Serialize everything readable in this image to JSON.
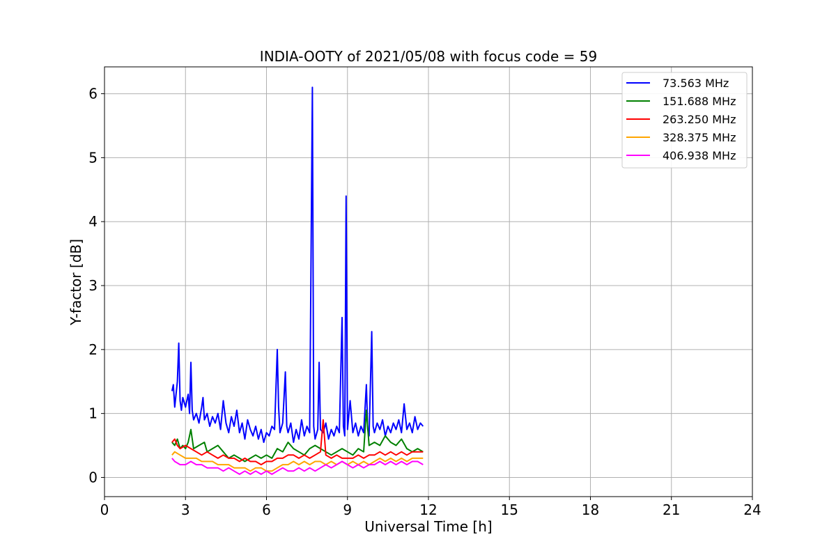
{
  "chart_data": {
    "type": "line",
    "title": "INDIA-OOTY of 2021/05/08 with focus code = 59",
    "xlabel": "Universal Time [h]",
    "ylabel": "Y-factor [dB]",
    "xlim": [
      0,
      24
    ],
    "ylim": [
      -0.3,
      6.42
    ],
    "xticks": [
      0,
      3,
      6,
      9,
      12,
      15,
      18,
      21,
      24
    ],
    "yticks": [
      0,
      1,
      2,
      3,
      4,
      5,
      6
    ],
    "grid": true,
    "legend_position": "top-right",
    "series": [
      {
        "name": " 73.563 MHz",
        "color": "#0000ff",
        "points": [
          [
            2.5,
            1.35
          ],
          [
            2.55,
            1.45
          ],
          [
            2.6,
            1.1
          ],
          [
            2.65,
            1.3
          ],
          [
            2.7,
            1.5
          ],
          [
            2.75,
            2.1
          ],
          [
            2.8,
            1.2
          ],
          [
            2.85,
            1.05
          ],
          [
            2.9,
            1.25
          ],
          [
            3.0,
            1.1
          ],
          [
            3.1,
            1.3
          ],
          [
            3.15,
            1.0
          ],
          [
            3.2,
            1.8
          ],
          [
            3.25,
            1.05
          ],
          [
            3.3,
            0.9
          ],
          [
            3.4,
            1.0
          ],
          [
            3.5,
            0.85
          ],
          [
            3.6,
            1.1
          ],
          [
            3.65,
            1.25
          ],
          [
            3.7,
            0.9
          ],
          [
            3.8,
            1.0
          ],
          [
            3.9,
            0.8
          ],
          [
            4.0,
            0.95
          ],
          [
            4.1,
            0.85
          ],
          [
            4.2,
            1.0
          ],
          [
            4.3,
            0.75
          ],
          [
            4.4,
            1.2
          ],
          [
            4.5,
            0.85
          ],
          [
            4.6,
            0.7
          ],
          [
            4.7,
            0.95
          ],
          [
            4.8,
            0.8
          ],
          [
            4.9,
            1.05
          ],
          [
            5.0,
            0.7
          ],
          [
            5.1,
            0.85
          ],
          [
            5.2,
            0.6
          ],
          [
            5.3,
            0.9
          ],
          [
            5.4,
            0.75
          ],
          [
            5.5,
            0.65
          ],
          [
            5.6,
            0.8
          ],
          [
            5.7,
            0.6
          ],
          [
            5.8,
            0.75
          ],
          [
            5.9,
            0.55
          ],
          [
            6.0,
            0.7
          ],
          [
            6.1,
            0.65
          ],
          [
            6.2,
            0.8
          ],
          [
            6.3,
            0.75
          ],
          [
            6.4,
            2.0
          ],
          [
            6.45,
            1.1
          ],
          [
            6.5,
            0.7
          ],
          [
            6.6,
            0.85
          ],
          [
            6.7,
            1.65
          ],
          [
            6.75,
            0.8
          ],
          [
            6.8,
            0.7
          ],
          [
            6.9,
            0.85
          ],
          [
            7.0,
            0.55
          ],
          [
            7.1,
            0.75
          ],
          [
            7.2,
            0.6
          ],
          [
            7.3,
            0.9
          ],
          [
            7.4,
            0.65
          ],
          [
            7.5,
            0.8
          ],
          [
            7.6,
            0.7
          ],
          [
            7.7,
            6.1
          ],
          [
            7.75,
            0.8
          ],
          [
            7.8,
            0.6
          ],
          [
            7.9,
            0.75
          ],
          [
            7.95,
            1.8
          ],
          [
            8.0,
            0.75
          ],
          [
            8.1,
            0.7
          ],
          [
            8.2,
            0.85
          ],
          [
            8.3,
            0.6
          ],
          [
            8.4,
            0.75
          ],
          [
            8.5,
            0.65
          ],
          [
            8.6,
            0.8
          ],
          [
            8.7,
            0.7
          ],
          [
            8.8,
            2.5
          ],
          [
            8.85,
            0.8
          ],
          [
            8.9,
            0.65
          ],
          [
            8.95,
            4.4
          ],
          [
            9.0,
            0.75
          ],
          [
            9.1,
            1.2
          ],
          [
            9.2,
            0.7
          ],
          [
            9.3,
            0.85
          ],
          [
            9.4,
            0.65
          ],
          [
            9.5,
            0.8
          ],
          [
            9.6,
            0.7
          ],
          [
            9.7,
            1.45
          ],
          [
            9.75,
            0.75
          ],
          [
            9.8,
            0.65
          ],
          [
            9.9,
            2.28
          ],
          [
            9.95,
            0.8
          ],
          [
            10.0,
            0.7
          ],
          [
            10.1,
            0.85
          ],
          [
            10.2,
            0.75
          ],
          [
            10.3,
            0.9
          ],
          [
            10.4,
            0.65
          ],
          [
            10.5,
            0.8
          ],
          [
            10.6,
            0.7
          ],
          [
            10.7,
            0.85
          ],
          [
            10.8,
            0.75
          ],
          [
            10.9,
            0.9
          ],
          [
            11.0,
            0.7
          ],
          [
            11.1,
            1.15
          ],
          [
            11.2,
            0.75
          ],
          [
            11.3,
            0.85
          ],
          [
            11.4,
            0.7
          ],
          [
            11.5,
            0.95
          ],
          [
            11.6,
            0.75
          ],
          [
            11.7,
            0.85
          ],
          [
            11.8,
            0.8
          ]
        ]
      },
      {
        "name": "151.688 MHz",
        "color": "#008000",
        "points": [
          [
            2.5,
            0.55
          ],
          [
            2.6,
            0.5
          ],
          [
            2.7,
            0.6
          ],
          [
            2.8,
            0.45
          ],
          [
            2.9,
            0.5
          ],
          [
            3.0,
            0.45
          ],
          [
            3.1,
            0.55
          ],
          [
            3.2,
            0.75
          ],
          [
            3.3,
            0.45
          ],
          [
            3.5,
            0.5
          ],
          [
            3.7,
            0.55
          ],
          [
            3.8,
            0.4
          ],
          [
            4.0,
            0.45
          ],
          [
            4.2,
            0.5
          ],
          [
            4.4,
            0.4
          ],
          [
            4.6,
            0.3
          ],
          [
            4.8,
            0.35
          ],
          [
            5.0,
            0.3
          ],
          [
            5.2,
            0.25
          ],
          [
            5.4,
            0.3
          ],
          [
            5.6,
            0.35
          ],
          [
            5.8,
            0.3
          ],
          [
            6.0,
            0.35
          ],
          [
            6.2,
            0.3
          ],
          [
            6.4,
            0.45
          ],
          [
            6.6,
            0.4
          ],
          [
            6.8,
            0.55
          ],
          [
            7.0,
            0.45
          ],
          [
            7.2,
            0.4
          ],
          [
            7.4,
            0.35
          ],
          [
            7.6,
            0.45
          ],
          [
            7.8,
            0.5
          ],
          [
            8.0,
            0.45
          ],
          [
            8.2,
            0.4
          ],
          [
            8.4,
            0.35
          ],
          [
            8.6,
            0.4
          ],
          [
            8.8,
            0.45
          ],
          [
            9.0,
            0.4
          ],
          [
            9.2,
            0.35
          ],
          [
            9.4,
            0.45
          ],
          [
            9.6,
            0.4
          ],
          [
            9.7,
            1.05
          ],
          [
            9.8,
            0.5
          ],
          [
            10.0,
            0.55
          ],
          [
            10.2,
            0.5
          ],
          [
            10.4,
            0.65
          ],
          [
            10.6,
            0.55
          ],
          [
            10.8,
            0.5
          ],
          [
            11.0,
            0.6
          ],
          [
            11.2,
            0.45
          ],
          [
            11.4,
            0.4
          ],
          [
            11.6,
            0.45
          ],
          [
            11.8,
            0.4
          ]
        ]
      },
      {
        "name": "263.250 MHz",
        "color": "#ff0000",
        "points": [
          [
            2.5,
            0.55
          ],
          [
            2.6,
            0.6
          ],
          [
            2.7,
            0.5
          ],
          [
            2.8,
            0.45
          ],
          [
            3.0,
            0.5
          ],
          [
            3.2,
            0.45
          ],
          [
            3.4,
            0.4
          ],
          [
            3.6,
            0.35
          ],
          [
            3.8,
            0.4
          ],
          [
            4.0,
            0.35
          ],
          [
            4.2,
            0.3
          ],
          [
            4.4,
            0.35
          ],
          [
            4.6,
            0.3
          ],
          [
            4.8,
            0.3
          ],
          [
            5.0,
            0.25
          ],
          [
            5.2,
            0.3
          ],
          [
            5.4,
            0.25
          ],
          [
            5.6,
            0.25
          ],
          [
            5.8,
            0.2
          ],
          [
            6.0,
            0.25
          ],
          [
            6.2,
            0.25
          ],
          [
            6.4,
            0.3
          ],
          [
            6.6,
            0.3
          ],
          [
            6.8,
            0.35
          ],
          [
            7.0,
            0.35
          ],
          [
            7.2,
            0.3
          ],
          [
            7.4,
            0.35
          ],
          [
            7.6,
            0.3
          ],
          [
            7.8,
            0.35
          ],
          [
            8.0,
            0.4
          ],
          [
            8.1,
            0.9
          ],
          [
            8.2,
            0.35
          ],
          [
            8.4,
            0.3
          ],
          [
            8.6,
            0.35
          ],
          [
            8.8,
            0.3
          ],
          [
            9.0,
            0.3
          ],
          [
            9.2,
            0.3
          ],
          [
            9.4,
            0.35
          ],
          [
            9.6,
            0.3
          ],
          [
            9.8,
            0.35
          ],
          [
            10.0,
            0.35
          ],
          [
            10.2,
            0.4
          ],
          [
            10.4,
            0.35
          ],
          [
            10.6,
            0.4
          ],
          [
            10.8,
            0.35
          ],
          [
            11.0,
            0.4
          ],
          [
            11.2,
            0.35
          ],
          [
            11.4,
            0.4
          ],
          [
            11.6,
            0.4
          ],
          [
            11.8,
            0.4
          ]
        ]
      },
      {
        "name": "328.375 MHz",
        "color": "#ffa500",
        "points": [
          [
            2.5,
            0.35
          ],
          [
            2.6,
            0.4
          ],
          [
            2.8,
            0.35
          ],
          [
            3.0,
            0.3
          ],
          [
            3.2,
            0.3
          ],
          [
            3.4,
            0.3
          ],
          [
            3.6,
            0.25
          ],
          [
            3.8,
            0.25
          ],
          [
            4.0,
            0.25
          ],
          [
            4.2,
            0.2
          ],
          [
            4.4,
            0.2
          ],
          [
            4.6,
            0.2
          ],
          [
            4.8,
            0.15
          ],
          [
            5.0,
            0.15
          ],
          [
            5.2,
            0.15
          ],
          [
            5.4,
            0.1
          ],
          [
            5.6,
            0.15
          ],
          [
            5.8,
            0.15
          ],
          [
            6.0,
            0.1
          ],
          [
            6.2,
            0.1
          ],
          [
            6.4,
            0.15
          ],
          [
            6.6,
            0.2
          ],
          [
            6.8,
            0.2
          ],
          [
            7.0,
            0.25
          ],
          [
            7.2,
            0.2
          ],
          [
            7.4,
            0.25
          ],
          [
            7.6,
            0.2
          ],
          [
            7.8,
            0.25
          ],
          [
            8.0,
            0.25
          ],
          [
            8.2,
            0.2
          ],
          [
            8.4,
            0.25
          ],
          [
            8.6,
            0.2
          ],
          [
            8.8,
            0.25
          ],
          [
            9.0,
            0.2
          ],
          [
            9.2,
            0.25
          ],
          [
            9.4,
            0.2
          ],
          [
            9.6,
            0.25
          ],
          [
            9.8,
            0.2
          ],
          [
            10.0,
            0.25
          ],
          [
            10.2,
            0.3
          ],
          [
            10.4,
            0.25
          ],
          [
            10.6,
            0.3
          ],
          [
            10.8,
            0.25
          ],
          [
            11.0,
            0.3
          ],
          [
            11.2,
            0.25
          ],
          [
            11.4,
            0.3
          ],
          [
            11.6,
            0.3
          ],
          [
            11.8,
            0.3
          ]
        ]
      },
      {
        "name": "406.938 MHz",
        "color": "#ff00ff",
        "points": [
          [
            2.5,
            0.3
          ],
          [
            2.6,
            0.25
          ],
          [
            2.8,
            0.2
          ],
          [
            3.0,
            0.2
          ],
          [
            3.2,
            0.25
          ],
          [
            3.4,
            0.2
          ],
          [
            3.6,
            0.2
          ],
          [
            3.8,
            0.15
          ],
          [
            4.0,
            0.15
          ],
          [
            4.2,
            0.15
          ],
          [
            4.4,
            0.1
          ],
          [
            4.6,
            0.15
          ],
          [
            4.8,
            0.1
          ],
          [
            5.0,
            0.05
          ],
          [
            5.2,
            0.1
          ],
          [
            5.4,
            0.05
          ],
          [
            5.6,
            0.1
          ],
          [
            5.8,
            0.05
          ],
          [
            6.0,
            0.1
          ],
          [
            6.2,
            0.05
          ],
          [
            6.4,
            0.1
          ],
          [
            6.6,
            0.15
          ],
          [
            6.8,
            0.1
          ],
          [
            7.0,
            0.1
          ],
          [
            7.2,
            0.15
          ],
          [
            7.4,
            0.1
          ],
          [
            7.6,
            0.15
          ],
          [
            7.8,
            0.1
          ],
          [
            8.0,
            0.15
          ],
          [
            8.2,
            0.2
          ],
          [
            8.4,
            0.15
          ],
          [
            8.6,
            0.2
          ],
          [
            8.8,
            0.25
          ],
          [
            9.0,
            0.2
          ],
          [
            9.2,
            0.15
          ],
          [
            9.4,
            0.2
          ],
          [
            9.6,
            0.15
          ],
          [
            9.8,
            0.2
          ],
          [
            10.0,
            0.2
          ],
          [
            10.2,
            0.25
          ],
          [
            10.4,
            0.2
          ],
          [
            10.6,
            0.25
          ],
          [
            10.8,
            0.2
          ],
          [
            11.0,
            0.25
          ],
          [
            11.2,
            0.2
          ],
          [
            11.4,
            0.25
          ],
          [
            11.6,
            0.25
          ],
          [
            11.8,
            0.2
          ]
        ]
      }
    ]
  }
}
